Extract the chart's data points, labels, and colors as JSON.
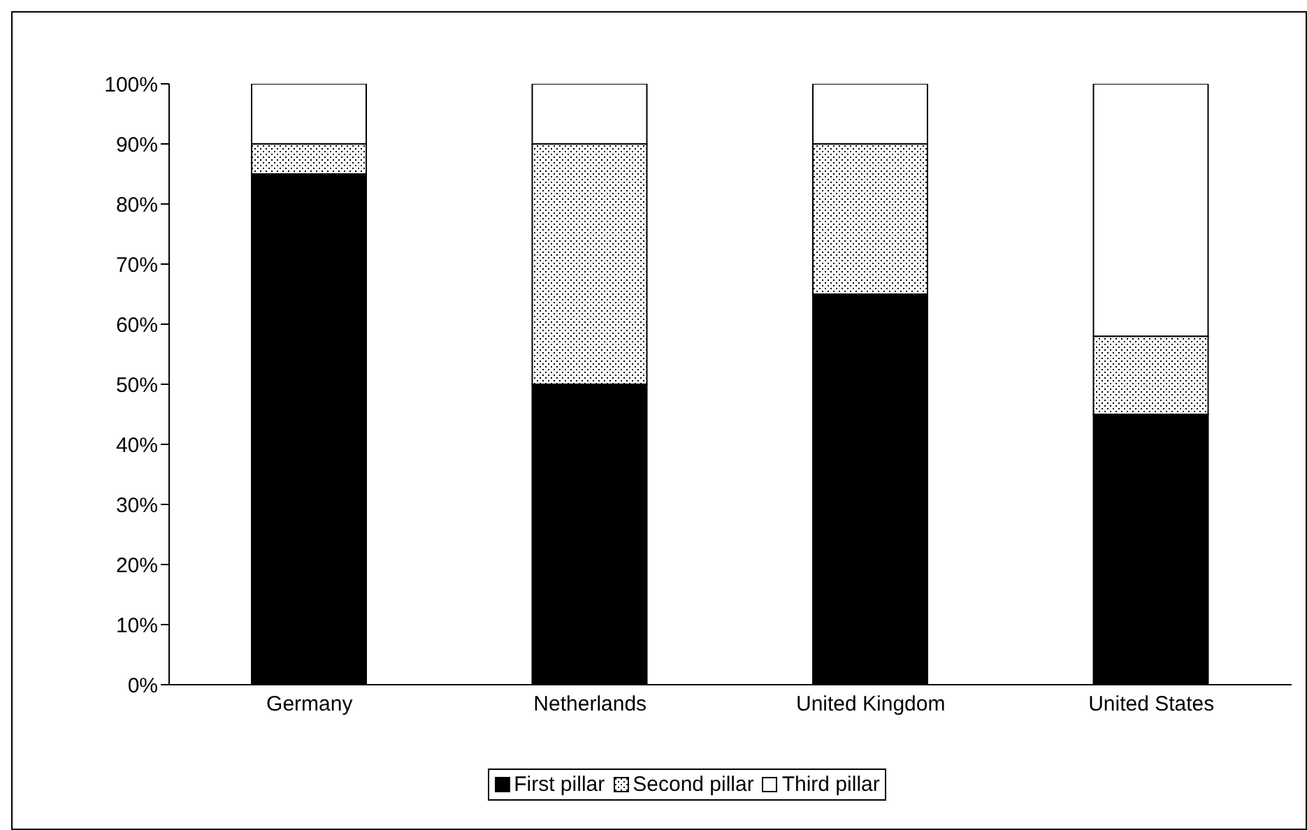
{
  "chart_data": {
    "type": "bar",
    "stacked": true,
    "categories": [
      "Germany",
      "Netherlands",
      "United Kingdom",
      "United States"
    ],
    "series": [
      {
        "name": "First pillar",
        "color": "#000000",
        "values": [
          85,
          50,
          65,
          45
        ]
      },
      {
        "name": "Second pillar",
        "color": "#000000",
        "values": [
          5,
          40,
          25,
          13
        ]
      },
      {
        "name": "Third pillar",
        "color": "#ffffff",
        "values": [
          10,
          10,
          10,
          42
        ]
      }
    ],
    "ylim": [
      0,
      100
    ],
    "yticks": [
      {
        "value": 0,
        "label": "0%"
      },
      {
        "value": 10,
        "label": "10%"
      },
      {
        "value": 20,
        "label": "20%"
      },
      {
        "value": 30,
        "label": "30%"
      },
      {
        "value": 40,
        "label": "40%"
      },
      {
        "value": 50,
        "label": "50%"
      },
      {
        "value": 60,
        "label": "60%"
      },
      {
        "value": 70,
        "label": "70%"
      },
      {
        "value": 80,
        "label": "80%"
      },
      {
        "value": 90,
        "label": "90%"
      },
      {
        "value": 100,
        "label": "100%"
      }
    ],
    "grid": false,
    "legend": "bottom"
  }
}
